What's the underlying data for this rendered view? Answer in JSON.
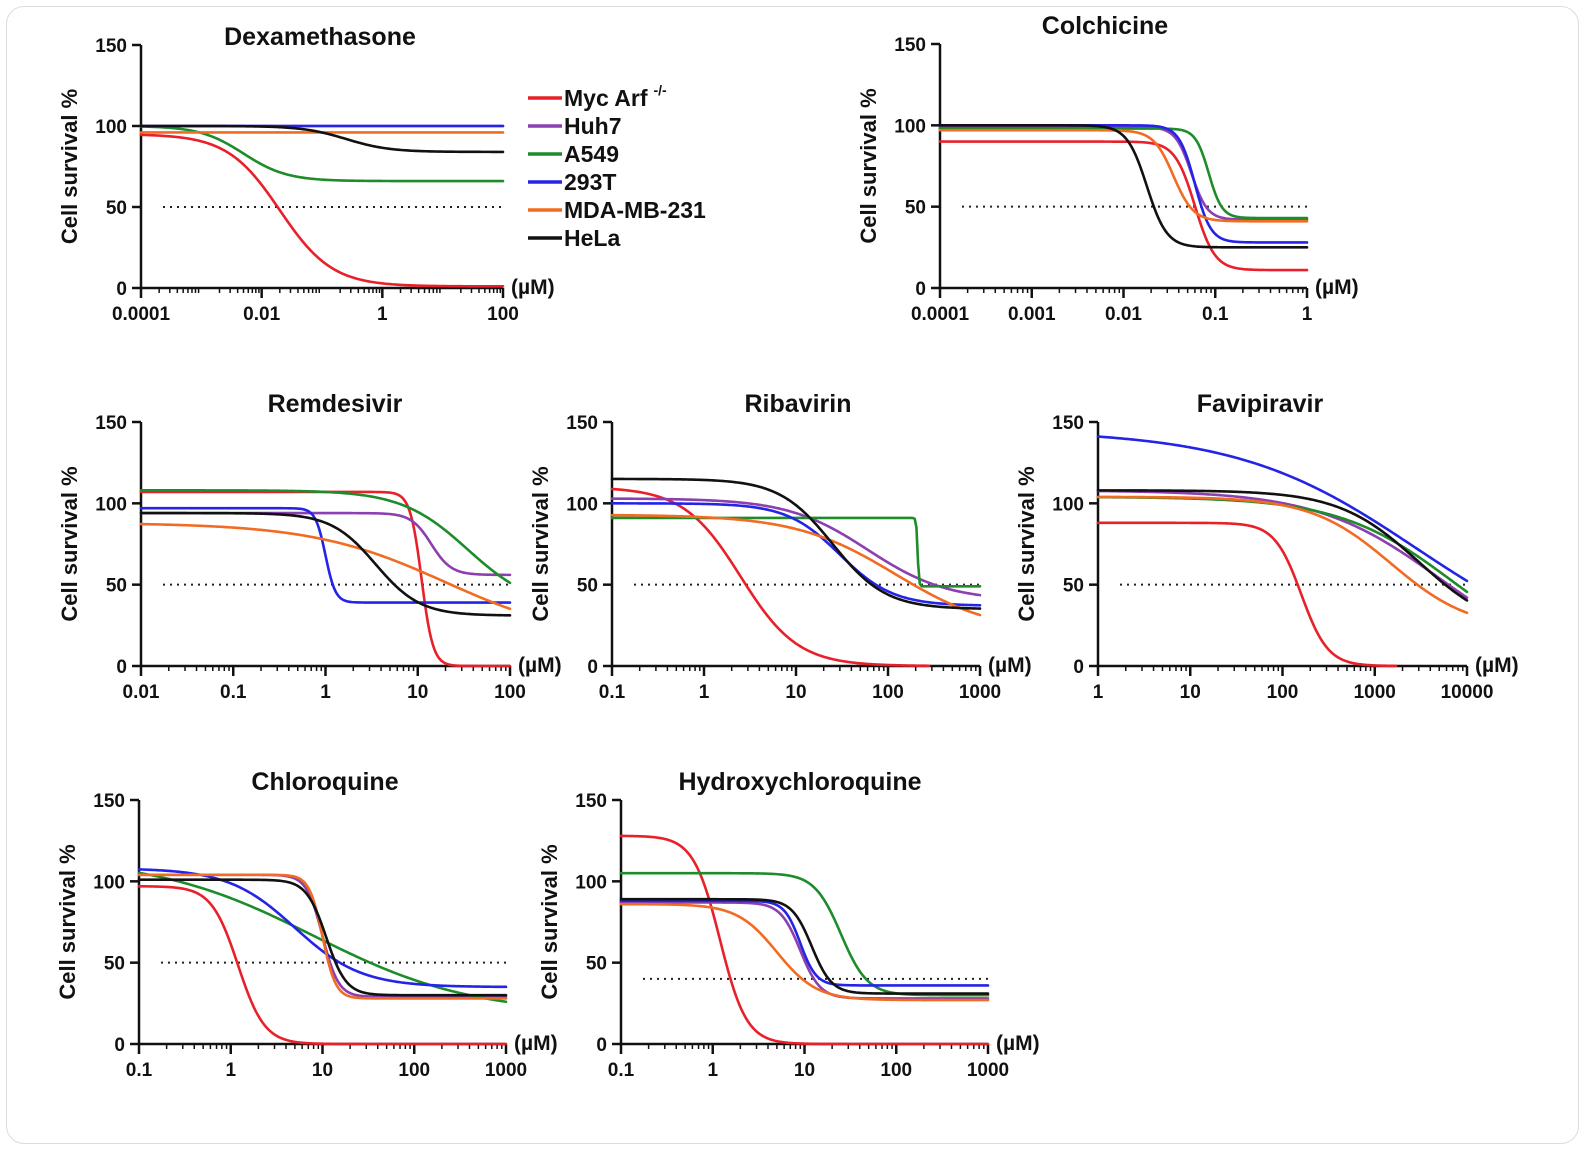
{
  "series_colors": {
    "Myc Arf -/-": "#e8202a",
    "Huh7": "#8b3fb0",
    "A549": "#1e8c2a",
    "293T": "#2424e6",
    "MDA-MB-231": "#f26b22",
    "HeLa": "#111111"
  },
  "legend": {
    "items": [
      {
        "name": "Myc Arf",
        "sup": "-/-",
        "color": "#e8202a"
      },
      {
        "name": "Huh7",
        "color": "#8b3fb0"
      },
      {
        "name": "A549",
        "color": "#1e8c2a"
      },
      {
        "name": "293T",
        "color": "#2424e6"
      },
      {
        "name": "MDA-MB-231",
        "color": "#f26b22"
      },
      {
        "name": "HeLa",
        "color": "#111111"
      }
    ]
  },
  "chart_data": [
    {
      "type": "line",
      "title": "Dexamethasone",
      "ylabel": "Cell survival %",
      "xunit": "(µM)",
      "xscale": "log",
      "xlim": [
        0.0001,
        100
      ],
      "ylim": [
        0,
        150
      ],
      "xticks": [
        0.0001,
        0.01,
        1,
        100
      ],
      "xtick_labels": [
        "0.0001",
        "0.01",
        "1",
        "100"
      ],
      "yticks": [
        0,
        50,
        100,
        150
      ],
      "ytick_labels": [
        "0",
        "50",
        "100",
        "150"
      ],
      "reference_line": 50,
      "series": [
        {
          "name": "Myc Arf -/-",
          "top": 95,
          "bottom": 1,
          "ic50": 0.02,
          "hill": 1.0
        },
        {
          "name": "Huh7",
          "top": 100,
          "bottom": 100,
          "ic50": 1,
          "hill": 1
        },
        {
          "name": "A549",
          "top": 100,
          "bottom": 66,
          "ic50": 0.005,
          "hill": 1.2
        },
        {
          "name": "293T",
          "top": 100,
          "bottom": 100,
          "ic50": 1,
          "hill": 1
        },
        {
          "name": "MDA-MB-231",
          "top": 96,
          "bottom": 96,
          "ic50": 1,
          "hill": 1
        },
        {
          "name": "HeLa",
          "top": 100,
          "bottom": 84,
          "ic50": 0.25,
          "hill": 1.2
        }
      ]
    },
    {
      "type": "line",
      "title": "Colchicine",
      "ylabel": "Cell survival %",
      "xunit": "(µM)",
      "xscale": "log",
      "xlim": [
        0.0001,
        1
      ],
      "ylim": [
        0,
        150
      ],
      "xticks": [
        0.0001,
        0.001,
        0.01,
        0.1,
        1
      ],
      "xtick_labels": [
        "0.0001",
        "0.001",
        "0.01",
        "0.1",
        "1"
      ],
      "yticks": [
        0,
        50,
        100,
        150
      ],
      "ytick_labels": [
        "0",
        "50",
        "100",
        "150"
      ],
      "reference_line": 50,
      "series": [
        {
          "name": "Myc Arf -/-",
          "top": 90,
          "bottom": 11,
          "ic50": 0.06,
          "hill": 4
        },
        {
          "name": "Huh7",
          "top": 99,
          "bottom": 42,
          "ic50": 0.055,
          "hill": 5
        },
        {
          "name": "A549",
          "top": 98,
          "bottom": 43,
          "ic50": 0.085,
          "hill": 6
        },
        {
          "name": "293T",
          "top": 100,
          "bottom": 28,
          "ic50": 0.06,
          "hill": 5
        },
        {
          "name": "MDA-MB-231",
          "top": 97,
          "bottom": 41,
          "ic50": 0.035,
          "hill": 4
        },
        {
          "name": "HeLa",
          "top": 100,
          "bottom": 25,
          "ic50": 0.018,
          "hill": 4
        }
      ]
    },
    {
      "type": "line",
      "title": "Remdesivir",
      "ylabel": "Cell survival %",
      "xunit": "(µM)",
      "xscale": "log",
      "xlim": [
        0.01,
        100
      ],
      "ylim": [
        0,
        150
      ],
      "xticks": [
        0.01,
        0.1,
        1,
        10,
        100
      ],
      "xtick_labels": [
        "0.01",
        "0.1",
        "1",
        "10",
        "100"
      ],
      "yticks": [
        0,
        50,
        100,
        150
      ],
      "ytick_labels": [
        "0",
        "50",
        "100",
        "150"
      ],
      "reference_line": 50,
      "series": [
        {
          "name": "Myc Arf -/-",
          "top": 107,
          "bottom": 0,
          "ic50": 11,
          "hill": 7
        },
        {
          "name": "Huh7",
          "top": 94,
          "bottom": 56,
          "ic50": 14,
          "hill": 4
        },
        {
          "name": "A549",
          "top": 108,
          "bottom": 35,
          "ic50": 35,
          "hill": 1.2
        },
        {
          "name": "293T",
          "top": 97,
          "bottom": 39,
          "ic50": 1.0,
          "hill": 8
        },
        {
          "name": "MDA-MB-231",
          "top": 88,
          "bottom": 15,
          "ic50": 20,
          "hill": 0.6
        },
        {
          "name": "HeLa",
          "top": 94,
          "bottom": 31,
          "ic50": 3.5,
          "hill": 1.8
        }
      ]
    },
    {
      "type": "line",
      "title": "Ribavirin",
      "ylabel": "Cell survival %",
      "xunit": "(µM)",
      "xscale": "log",
      "xlim": [
        0.1,
        1000
      ],
      "ylim": [
        0,
        150
      ],
      "xticks": [
        0.1,
        1,
        10,
        100,
        1000
      ],
      "xtick_labels": [
        "0.1",
        "1",
        "10",
        "100",
        "1000"
      ],
      "yticks": [
        0,
        50,
        100,
        150
      ],
      "ytick_labels": [
        "0",
        "50",
        "100",
        "150"
      ],
      "reference_line": 50,
      "series": [
        {
          "name": "Myc Arf -/-",
          "top": 110,
          "bottom": 0,
          "ic50": 2.5,
          "hill": 1.4,
          "xmax": 280
        },
        {
          "name": "Huh7",
          "top": 103,
          "bottom": 40,
          "ic50": 60,
          "hill": 1.0
        },
        {
          "name": "A549",
          "top": 91,
          "bottom": 49,
          "ic50": 210,
          "hill": 60
        },
        {
          "name": "293T",
          "top": 100,
          "bottom": 37,
          "ic50": 30,
          "hill": 1.5
        },
        {
          "name": "MDA-MB-231",
          "top": 93,
          "bottom": 20,
          "ic50": 120,
          "hill": 0.8
        },
        {
          "name": "HeLa",
          "top": 115,
          "bottom": 35,
          "ic50": 25,
          "hill": 1.5
        }
      ]
    },
    {
      "type": "line",
      "title": "Favipiravir",
      "ylabel": "Cell survival %",
      "xunit": "(µM)",
      "xscale": "log",
      "xlim": [
        1,
        10000
      ],
      "ylim": [
        0,
        150
      ],
      "xticks": [
        1,
        10,
        100,
        1000,
        10000
      ],
      "xtick_labels": [
        "1",
        "10",
        "100",
        "1000",
        "10000"
      ],
      "yticks": [
        0,
        50,
        100,
        150
      ],
      "ytick_labels": [
        "0",
        "50",
        "100",
        "150"
      ],
      "reference_line": 50,
      "series": [
        {
          "name": "Myc Arf -/-",
          "top": 88,
          "bottom": 0,
          "ic50": 160,
          "hill": 3,
          "xmax": 1700
        },
        {
          "name": "Huh7",
          "top": 108,
          "bottom": 0,
          "ic50": 5000,
          "hill": 0.65
        },
        {
          "name": "A549",
          "top": 104,
          "bottom": 0,
          "ic50": 7000,
          "hill": 0.7
        },
        {
          "name": "293T",
          "top": 145,
          "bottom": 0,
          "ic50": 2800,
          "hill": 0.45
        },
        {
          "name": "MDA-MB-231",
          "top": 104,
          "bottom": 22,
          "ic50": 1500,
          "hill": 1.0
        },
        {
          "name": "HeLa",
          "top": 108,
          "bottom": 20,
          "ic50": 3000,
          "hill": 1.0
        }
      ]
    },
    {
      "type": "line",
      "title": "Chloroquine",
      "ylabel": "Cell survival %",
      "xunit": "(µM)",
      "xscale": "log",
      "xlim": [
        0.1,
        1000
      ],
      "ylim": [
        0,
        150
      ],
      "xticks": [
        0.1,
        1,
        10,
        100,
        1000
      ],
      "xtick_labels": [
        "0.1",
        "1",
        "10",
        "100",
        "1000"
      ],
      "yticks": [
        0,
        50,
        100,
        150
      ],
      "ytick_labels": [
        "0",
        "50",
        "100",
        "150"
      ],
      "reference_line": 50,
      "series": [
        {
          "name": "Myc Arf -/-",
          "top": 97,
          "bottom": 0,
          "ic50": 1.2,
          "hill": 3
        },
        {
          "name": "Huh7",
          "top": 104,
          "bottom": 29,
          "ic50": 10,
          "hill": 5
        },
        {
          "name": "A549",
          "top": 115,
          "bottom": 18,
          "ic50": 8,
          "hill": 0.5
        },
        {
          "name": "293T",
          "top": 108,
          "bottom": 35,
          "ic50": 5,
          "hill": 1.2
        },
        {
          "name": "MDA-MB-231",
          "top": 104,
          "bottom": 28,
          "ic50": 10,
          "hill": 6
        },
        {
          "name": "HeLa",
          "top": 101,
          "bottom": 30,
          "ic50": 11,
          "hill": 4
        }
      ]
    },
    {
      "type": "line",
      "title": "Hydroxychloroquine",
      "ylabel": "Cell survival %",
      "xunit": "(µM)",
      "xscale": "log",
      "xlim": [
        0.1,
        1000
      ],
      "ylim": [
        0,
        150
      ],
      "xticks": [
        0.1,
        1,
        10,
        100,
        1000
      ],
      "xtick_labels": [
        "0.1",
        "1",
        "10",
        "100",
        "1000"
      ],
      "yticks": [
        0,
        50,
        100,
        150
      ],
      "ytick_labels": [
        "0",
        "50",
        "100",
        "150"
      ],
      "reference_line": 40,
      "series": [
        {
          "name": "Myc Arf -/-",
          "top": 128,
          "bottom": 0,
          "ic50": 1.2,
          "hill": 3
        },
        {
          "name": "Huh7",
          "top": 87,
          "bottom": 28,
          "ic50": 9,
          "hill": 4
        },
        {
          "name": "A549",
          "top": 105,
          "bottom": 30,
          "ic50": 25,
          "hill": 3
        },
        {
          "name": "293T",
          "top": 88,
          "bottom": 36,
          "ic50": 9,
          "hill": 5
        },
        {
          "name": "MDA-MB-231",
          "top": 86,
          "bottom": 27,
          "ic50": 5,
          "hill": 2
        },
        {
          "name": "HeLa",
          "top": 89,
          "bottom": 31,
          "ic50": 12,
          "hill": 4
        }
      ]
    }
  ]
}
